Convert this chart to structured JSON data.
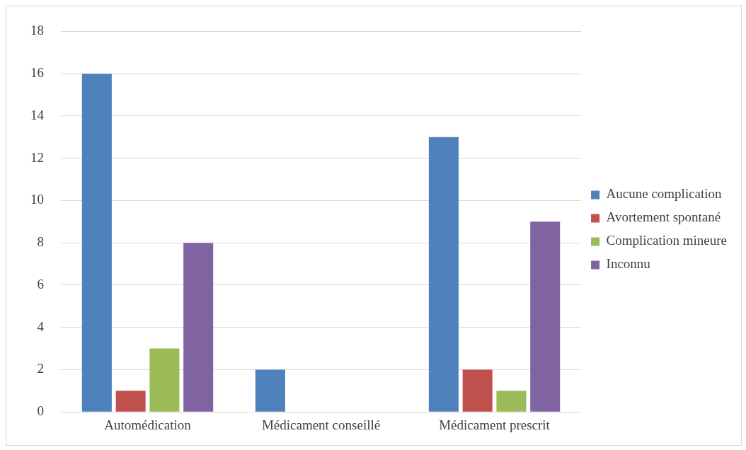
{
  "chart_data": {
    "type": "bar",
    "categories": [
      "Automédication",
      "Médicament conseillé",
      "Médicament prescrit"
    ],
    "series": [
      {
        "name": "Aucune complication",
        "color": "#4f81bd",
        "values": [
          16,
          2,
          13
        ]
      },
      {
        "name": "Avortement spontané",
        "color": "#c0504d",
        "values": [
          1,
          0,
          2
        ]
      },
      {
        "name": "Complication mineure",
        "color": "#9bbb59",
        "values": [
          3,
          0,
          1
        ]
      },
      {
        "name": "Inconnu",
        "color": "#8064a2",
        "values": [
          8,
          0,
          9
        ]
      }
    ],
    "ylim": [
      0,
      18
    ],
    "yticks": [
      0,
      2,
      4,
      6,
      8,
      10,
      12,
      14,
      16,
      18
    ],
    "grid": "y",
    "legend": "right"
  }
}
